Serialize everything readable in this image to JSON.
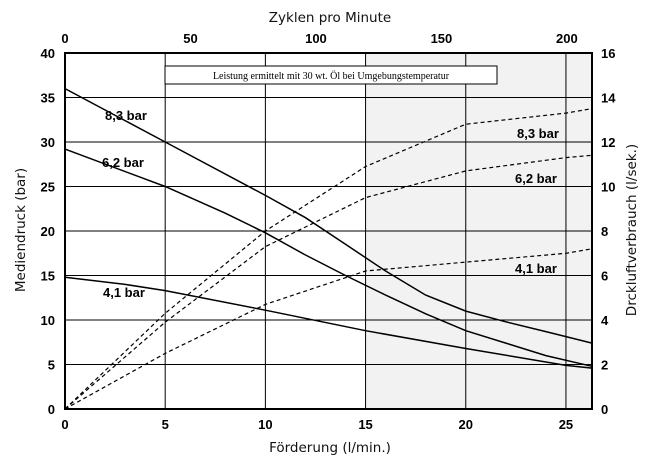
{
  "chart_data": {
    "type": "line",
    "note": "Leistung ermittelt mit 30 wt. Öl bei Umgebungstemperatur",
    "xlabel": "Förderung (l/min.)",
    "xlim": [
      0,
      26.3
    ],
    "xticks": [
      0,
      5,
      10,
      15,
      20,
      25
    ],
    "x2label": "Zyklen pro Minute",
    "x2lim": [
      0,
      210
    ],
    "x2ticks": [
      0,
      50,
      100,
      150,
      200
    ],
    "ylabel": "Mediendruck (bar)",
    "ylim": [
      0,
      40
    ],
    "yticks": [
      0,
      5,
      10,
      15,
      20,
      25,
      30,
      35,
      40
    ],
    "y2label": "Drckluftverbrauch (l/sek.)",
    "y2lim": [
      0,
      16
    ],
    "y2ticks": [
      0,
      2,
      4,
      6,
      8,
      10,
      12,
      14,
      16
    ],
    "shaded_region_x": [
      15,
      26.3
    ],
    "pressure_series": [
      {
        "name": "8,3 bar",
        "axis": "left",
        "style": "solid",
        "x": [
          0,
          5,
          10,
          12,
          14,
          16,
          18,
          20,
          22,
          24,
          26.3
        ],
        "y": [
          36,
          30,
          24,
          21.5,
          18.5,
          15.5,
          12.8,
          11,
          9.8,
          8.7,
          7.4
        ]
      },
      {
        "name": "6,2 bar",
        "axis": "left",
        "style": "solid",
        "x": [
          0,
          5,
          8,
          10,
          12,
          14,
          16,
          18,
          20,
          22,
          24,
          26.3
        ],
        "y": [
          29.2,
          25,
          22,
          19.8,
          17.3,
          15,
          12.8,
          10.7,
          8.8,
          7.4,
          6,
          4.8
        ]
      },
      {
        "name": "4,1 bar",
        "axis": "left",
        "style": "solid",
        "x": [
          0,
          3,
          5,
          10,
          15,
          20,
          25,
          26.3
        ],
        "y": [
          14.8,
          14,
          13.3,
          11.1,
          8.8,
          6.8,
          4.9,
          4.6
        ]
      }
    ],
    "air_series": [
      {
        "name": "8,3 bar",
        "axis": "right",
        "style": "dashed",
        "x": [
          0,
          5,
          10,
          15,
          20,
          25,
          26.3
        ],
        "y": [
          0,
          4.3,
          8,
          10.9,
          12.8,
          13.3,
          13.5
        ]
      },
      {
        "name": "6,2 bar",
        "axis": "right",
        "style": "dashed",
        "x": [
          0,
          5,
          10,
          15,
          20,
          25,
          26.3
        ],
        "y": [
          0,
          3.9,
          7.3,
          9.5,
          10.7,
          11.3,
          11.4
        ]
      },
      {
        "name": "4,1 bar",
        "axis": "right",
        "style": "dashed",
        "x": [
          0,
          5,
          10,
          15,
          20,
          25,
          26.3
        ],
        "y": [
          0,
          2.5,
          4.7,
          6.2,
          6.6,
          7,
          7.2
        ]
      }
    ]
  }
}
